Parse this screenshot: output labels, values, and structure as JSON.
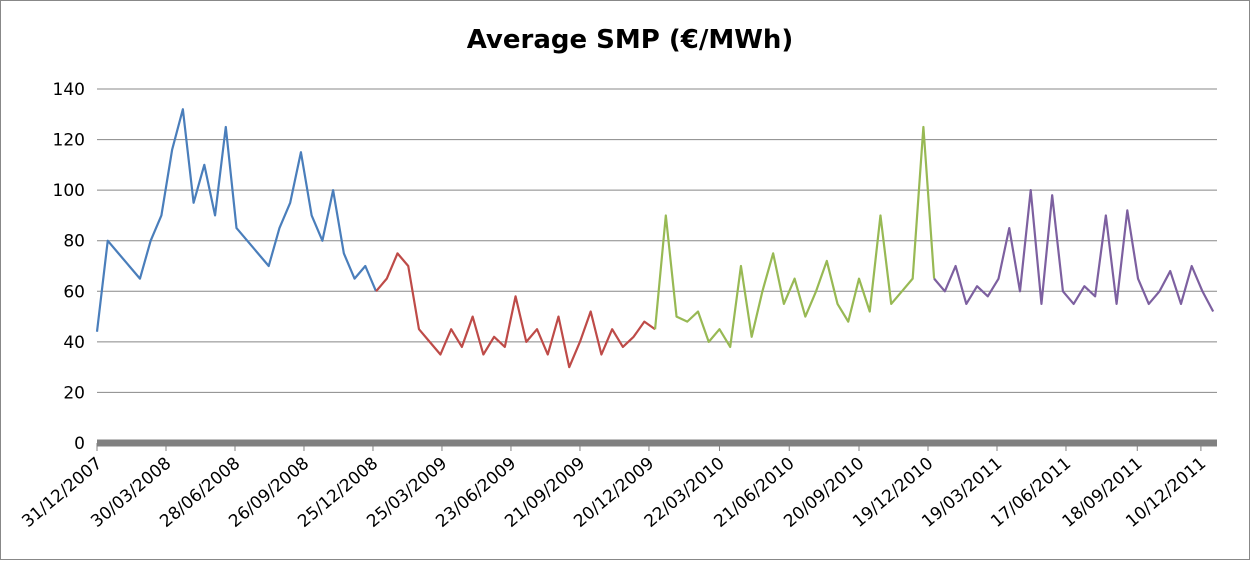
{
  "chart_data": {
    "type": "line",
    "title": "Average SMP (€/MWh)",
    "xlim": [
      "31/12/2007",
      "31/12/2011"
    ],
    "xticks": [
      "31/12/2007",
      "30/03/2008",
      "28/06/2008",
      "26/09/2008",
      "25/12/2008",
      "25/03/2009",
      "23/06/2009",
      "21/09/2009",
      "20/12/2009",
      "22/03/2010",
      "21/06/2010",
      "20/09/2010",
      "19/12/2010",
      "19/03/2011",
      "17/06/2011",
      "18/09/2011",
      "10/12/2011"
    ],
    "ylim": [
      0,
      140
    ],
    "yticks": [
      0,
      20,
      40,
      60,
      80,
      100,
      120,
      140
    ],
    "grid": true,
    "series": [
      {
        "color": "#4a7ebb",
        "x": [
          "31/12/2007",
          "14/01/2008",
          "28/01/2008",
          "11/02/2008",
          "25/02/2008",
          "10/03/2008",
          "24/03/2008",
          "07/04/2008",
          "21/04/2008",
          "05/05/2008",
          "19/05/2008",
          "02/06/2008",
          "16/06/2008",
          "30/06/2008",
          "14/07/2008",
          "28/07/2008",
          "11/08/2008",
          "25/08/2008",
          "08/09/2008",
          "22/09/2008",
          "06/10/2008",
          "20/10/2008",
          "03/11/2008",
          "17/11/2008",
          "01/12/2008",
          "15/12/2008",
          "29/12/2008"
        ],
        "values": [
          44,
          80,
          75,
          70,
          65,
          80,
          90,
          116,
          132,
          95,
          110,
          90,
          125,
          85,
          80,
          75,
          70,
          85,
          95,
          115,
          90,
          80,
          100,
          75,
          65,
          70,
          60
        ]
      },
      {
        "color": "#be4b48",
        "x": [
          "29/12/2008",
          "12/01/2009",
          "26/01/2009",
          "09/02/2009",
          "23/02/2009",
          "09/03/2009",
          "23/03/2009",
          "06/04/2009",
          "20/04/2009",
          "04/05/2009",
          "18/05/2009",
          "01/06/2009",
          "15/06/2009",
          "29/06/2009",
          "13/07/2009",
          "27/07/2009",
          "10/08/2009",
          "24/08/2009",
          "07/09/2009",
          "21/09/2009",
          "05/10/2009",
          "19/10/2009",
          "02/11/2009",
          "16/11/2009",
          "30/11/2009",
          "14/12/2009",
          "28/12/2009"
        ],
        "values": [
          60,
          65,
          75,
          70,
          45,
          40,
          35,
          45,
          38,
          50,
          35,
          42,
          38,
          58,
          40,
          45,
          35,
          50,
          30,
          40,
          52,
          35,
          45,
          38,
          42,
          48,
          45
        ]
      },
      {
        "color": "#98b954",
        "x": [
          "28/12/2009",
          "11/01/2010",
          "25/01/2010",
          "08/02/2010",
          "22/02/2010",
          "08/03/2010",
          "22/03/2010",
          "05/04/2010",
          "19/04/2010",
          "03/05/2010",
          "17/05/2010",
          "31/05/2010",
          "14/06/2010",
          "28/06/2010",
          "12/07/2010",
          "26/07/2010",
          "09/08/2010",
          "23/08/2010",
          "06/09/2010",
          "20/09/2010",
          "04/10/2010",
          "18/10/2010",
          "01/11/2010",
          "15/11/2010",
          "29/11/2010",
          "13/12/2010",
          "27/12/2010"
        ],
        "values": [
          45,
          90,
          50,
          48,
          52,
          40,
          45,
          38,
          70,
          42,
          60,
          75,
          55,
          65,
          50,
          60,
          72,
          55,
          48,
          65,
          52,
          90,
          55,
          60,
          65,
          125,
          65
        ]
      },
      {
        "color": "#7d60a0",
        "x": [
          "27/12/2010",
          "10/01/2011",
          "24/01/2011",
          "07/02/2011",
          "21/02/2011",
          "07/03/2011",
          "21/03/2011",
          "04/04/2011",
          "18/04/2011",
          "02/05/2011",
          "16/05/2011",
          "30/05/2011",
          "13/06/2011",
          "27/06/2011",
          "11/07/2011",
          "25/07/2011",
          "08/08/2011",
          "22/08/2011",
          "05/09/2011",
          "19/09/2011",
          "03/10/2011",
          "17/10/2011",
          "31/10/2011",
          "14/11/2011",
          "28/11/2011",
          "12/12/2011",
          "26/12/2011"
        ],
        "values": [
          65,
          60,
          70,
          55,
          62,
          58,
          65,
          85,
          60,
          100,
          55,
          98,
          60,
          55,
          62,
          58,
          90,
          55,
          92,
          65,
          55,
          60,
          68,
          55,
          70,
          60,
          52
        ]
      }
    ]
  }
}
